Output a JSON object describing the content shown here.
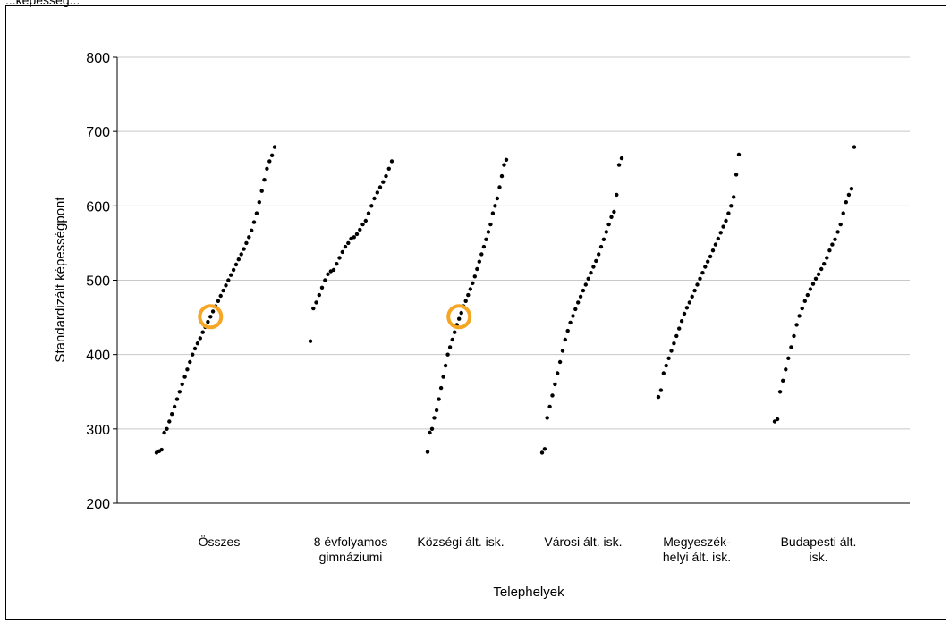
{
  "page": {
    "top_text": "...képesség..."
  },
  "chart_data": {
    "type": "scatter",
    "title": "",
    "xlabel": "Telephelyek",
    "ylabel": "Standardizált képességpont",
    "ylim": [
      200,
      800
    ],
    "yticks": [
      200,
      300,
      400,
      500,
      600,
      700,
      800
    ],
    "grid": true,
    "legend": "none",
    "categories": [
      {
        "label_lines": [
          "Összes"
        ]
      },
      {
        "label_lines": [
          "8 évfolyamos",
          "gimnáziumi"
        ]
      },
      {
        "label_lines": [
          "Községi ált. isk."
        ]
      },
      {
        "label_lines": [
          "Városi ált. isk."
        ]
      },
      {
        "label_lines": [
          "Megyeszék-",
          "helyi ált. isk."
        ]
      },
      {
        "label_lines": [
          "Budapesti ált.",
          "isk."
        ]
      }
    ],
    "series": [
      {
        "category": 0,
        "values_sorted": [
          268,
          270,
          272,
          295,
          300,
          310,
          320,
          330,
          340,
          350,
          360,
          370,
          380,
          390,
          400,
          408,
          415,
          422,
          430,
          437,
          444,
          451,
          458,
          465,
          472,
          479,
          486,
          493,
          500,
          507,
          514,
          521,
          528,
          535,
          542,
          550,
          558,
          567,
          578,
          590,
          605,
          620,
          635,
          650,
          660,
          668,
          679
        ]
      },
      {
        "category": 1,
        "values_sorted": [
          418,
          462,
          470,
          480,
          490,
          500,
          508,
          512,
          514,
          522,
          530,
          538,
          545,
          550,
          556,
          558,
          562,
          568,
          575,
          580,
          590,
          600,
          610,
          618,
          625,
          632,
          640,
          650,
          660
        ]
      },
      {
        "category": 2,
        "values_sorted": [
          269,
          295,
          300,
          315,
          325,
          340,
          355,
          370,
          385,
          400,
          410,
          420,
          430,
          440,
          448,
          456,
          465,
          472,
          480,
          488,
          496,
          505,
          515,
          525,
          535,
          545,
          555,
          565,
          575,
          590,
          600,
          610,
          625,
          640,
          655,
          662
        ]
      },
      {
        "category": 3,
        "values_sorted": [
          268,
          273,
          315,
          330,
          345,
          360,
          375,
          390,
          405,
          420,
          432,
          443,
          452,
          461,
          470,
          478,
          486,
          494,
          502,
          510,
          518,
          526,
          535,
          545,
          555,
          565,
          575,
          585,
          592,
          615,
          655,
          664
        ]
      },
      {
        "category": 4,
        "values_sorted": [
          343,
          352,
          375,
          385,
          395,
          405,
          415,
          425,
          435,
          445,
          455,
          463,
          470,
          478,
          486,
          494,
          502,
          510,
          518,
          525,
          532,
          540,
          548,
          556,
          564,
          572,
          580,
          590,
          600,
          612,
          642,
          669
        ]
      },
      {
        "category": 5,
        "values_sorted": [
          310,
          313,
          350,
          365,
          380,
          395,
          410,
          425,
          440,
          452,
          462,
          472,
          480,
          488,
          495,
          502,
          508,
          515,
          522,
          530,
          540,
          548,
          555,
          565,
          575,
          590,
          605,
          615,
          623,
          679
        ]
      }
    ],
    "highlights": [
      {
        "category": 0,
        "value": 451,
        "color": "#F5A623"
      },
      {
        "category": 2,
        "value": 451,
        "color": "#F5A623"
      }
    ],
    "colors": {
      "points": "#000000",
      "grid": "#c8c8c8",
      "highlight": "#F5A623"
    }
  }
}
